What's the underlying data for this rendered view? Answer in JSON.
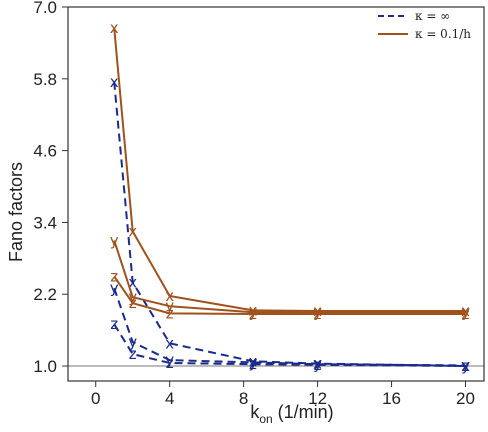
{
  "chart_data": {
    "type": "line",
    "ylabel": "Fano factors",
    "xlabel": "k",
    "xlabel_sub": "on",
    "xlabel_unit": " (1/min)",
    "xlim": [
      -1.5,
      21
    ],
    "ylim": [
      0.75,
      7.0
    ],
    "x_ticks": [
      0,
      4,
      8,
      12,
      16,
      20
    ],
    "y_ticks": [
      "1.0",
      "2.2",
      "3.4",
      "4.6",
      "5.8",
      "7.0"
    ],
    "hline": 1.0,
    "legend": {
      "placement": "top-right",
      "entries": [
        {
          "label": "κ = ∞",
          "style": "dashed",
          "color": "#1a2b8c"
        },
        {
          "label": "κ = 0.1/h",
          "style": "solid",
          "color": "#a0521d"
        }
      ]
    },
    "x": [
      1,
      2,
      4,
      8.5,
      12,
      20
    ],
    "series": [
      {
        "marker": "x",
        "style": "dashed",
        "color": "#1a2b8c",
        "values": [
          5.75,
          2.4,
          1.38,
          1.08,
          1.04,
          1.0
        ]
      },
      {
        "marker": "y",
        "style": "dashed",
        "color": "#1a2b8c",
        "values": [
          2.3,
          1.4,
          1.1,
          1.06,
          1.03,
          1.01
        ]
      },
      {
        "marker": "z",
        "style": "dashed",
        "color": "#1a2b8c",
        "values": [
          1.7,
          1.2,
          1.05,
          1.03,
          1.02,
          1.0
        ]
      },
      {
        "marker": "x",
        "style": "solid",
        "color": "#a0521d",
        "values": [
          6.65,
          3.25,
          2.17,
          1.93,
          1.92,
          1.92
        ]
      },
      {
        "marker": "y",
        "style": "solid",
        "color": "#a0521d",
        "values": [
          3.1,
          2.15,
          2.0,
          1.9,
          1.9,
          1.9
        ]
      },
      {
        "marker": "z",
        "style": "solid",
        "color": "#a0521d",
        "values": [
          2.5,
          2.05,
          1.88,
          1.87,
          1.87,
          1.87
        ]
      }
    ]
  }
}
